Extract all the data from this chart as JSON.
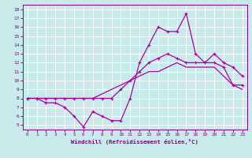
{
  "x": [
    0,
    1,
    2,
    3,
    4,
    5,
    6,
    7,
    8,
    9,
    10,
    11,
    12,
    13,
    14,
    15,
    16,
    17,
    18,
    19,
    20,
    21,
    22,
    23
  ],
  "line_top": [
    8,
    8,
    8,
    8,
    8,
    8,
    8,
    8,
    8,
    8,
    9,
    10,
    11,
    12,
    12.5,
    13,
    12.5,
    12,
    12,
    12,
    12,
    11.5,
    9.5,
    9.5
  ],
  "line_mid": [
    8,
    8,
    8,
    8,
    8,
    8,
    8,
    8,
    8.5,
    9,
    9.5,
    10,
    10.5,
    11,
    11,
    11.5,
    12,
    11.5,
    11.5,
    11.5,
    11.5,
    10.5,
    9.5,
    9
  ],
  "line_bot": [
    8,
    8,
    7.5,
    7.5,
    7,
    6,
    4.8,
    6.5,
    6,
    5.5,
    5.5,
    8,
    12,
    14,
    16,
    15.5,
    15.5,
    17.5,
    13,
    12,
    13,
    12,
    11.5,
    10.5
  ],
  "bg_color": "#c8eaea",
  "grid_color": "#ffffff",
  "line_color": "#aa00aa",
  "xlabel": "Windchill (Refroidissement éolien,°C)",
  "xlim": [
    -0.5,
    23.5
  ],
  "ylim": [
    4.5,
    18.5
  ],
  "yticks": [
    5,
    6,
    7,
    8,
    9,
    10,
    11,
    12,
    13,
    14,
    15,
    16,
    17,
    18
  ],
  "xticks": [
    0,
    1,
    2,
    3,
    4,
    5,
    6,
    7,
    8,
    9,
    10,
    11,
    12,
    13,
    14,
    15,
    16,
    17,
    18,
    19,
    20,
    21,
    22,
    23
  ],
  "label_color": "#880088"
}
